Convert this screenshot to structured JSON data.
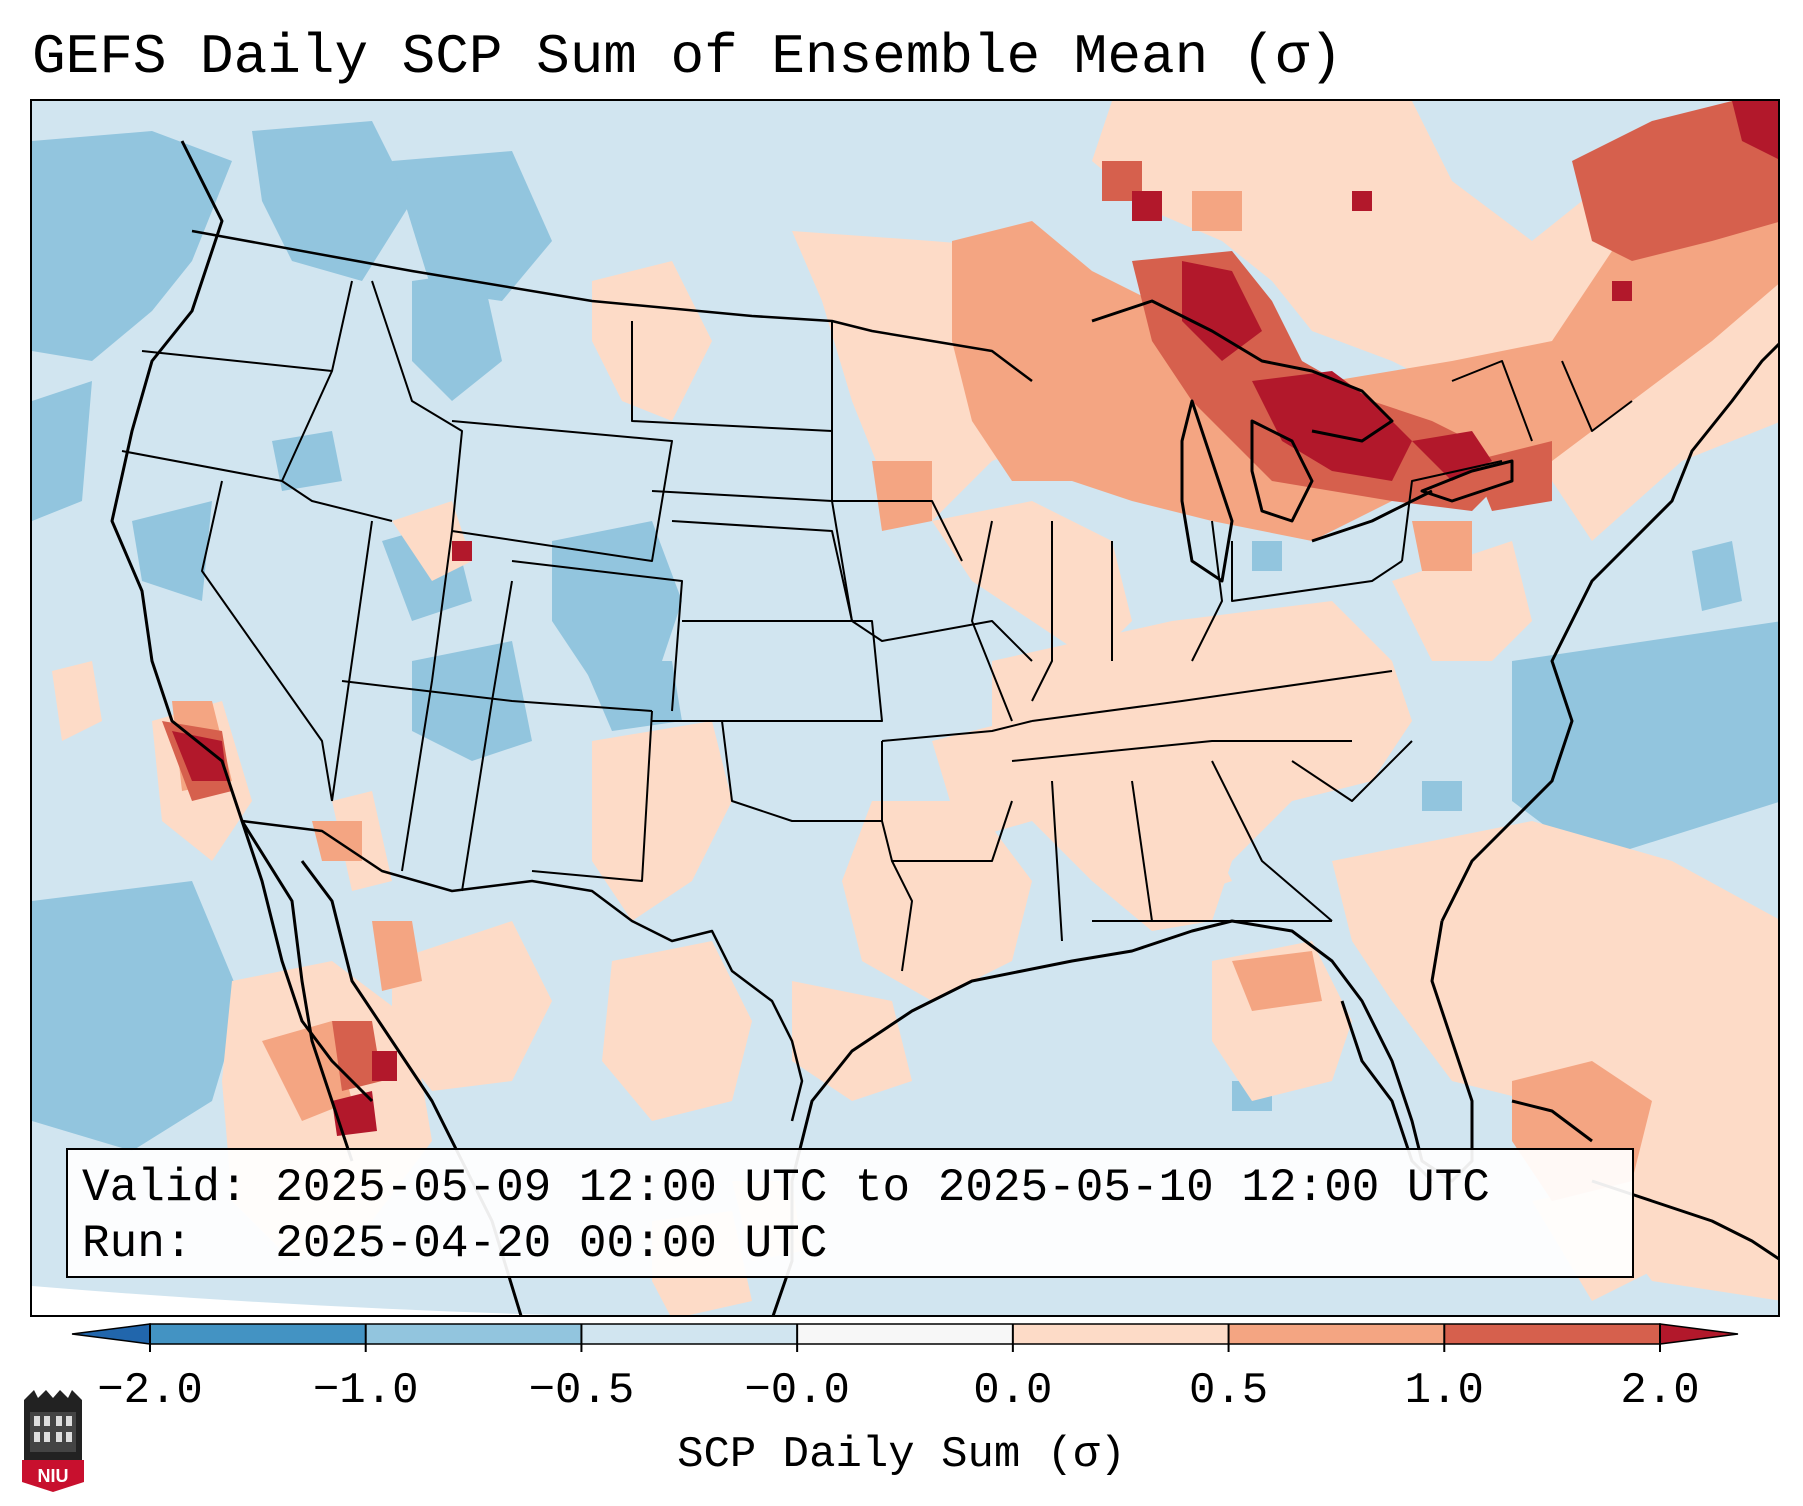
{
  "title": "GEFS Daily SCP Sum of Ensemble Mean (σ)",
  "valid_text": "Valid: 2025-05-09 12:00 UTC to 2025-05-10 12:00 UTC",
  "run_text": "Run:   2025-04-20 00:00 UTC",
  "colorbar": {
    "label": "SCP Daily Sum (σ)",
    "ticks": [
      "−2.0",
      "−1.0",
      "−0.5",
      "−0.0",
      "0.0",
      "0.5",
      "1.0",
      "2.0"
    ],
    "colors": [
      "#2166ac",
      "#4393c3",
      "#92c5de",
      "#d1e5f0",
      "#f7f7f7",
      "#fddbc7",
      "#f4a582",
      "#d6604d",
      "#b2182b"
    ],
    "extend": "both"
  },
  "logo": {
    "text": "NIU",
    "color": "#c8102e",
    "icon": "university-building-icon"
  },
  "map": {
    "region": "Continental United States",
    "projection": "Lambert Conformal",
    "features": [
      "coastlines",
      "country borders",
      "state borders"
    ],
    "anomaly_regions": [
      {
        "area": "Upper Great Lakes / Michigan",
        "level": "strong positive"
      },
      {
        "area": "Lower Great Lakes / Ontario",
        "level": "strong positive"
      },
      {
        "area": "Northern New England / Maine",
        "level": "positive"
      },
      {
        "area": "Southern California coast",
        "level": "strong positive"
      },
      {
        "area": "Mid-Mississippi Valley and Southeast",
        "level": "weak positive"
      },
      {
        "area": "Southern Texas",
        "level": "weak positive"
      },
      {
        "area": "Western Mexico / Sinaloa",
        "level": "positive"
      },
      {
        "area": "Northern Rockies and Pacific Northwest",
        "level": "weak negative"
      },
      {
        "area": "Utah and Colorado",
        "level": "weak negative"
      },
      {
        "area": "Eastern Pacific and Western Atlantic",
        "level": "weak negative"
      }
    ]
  }
}
